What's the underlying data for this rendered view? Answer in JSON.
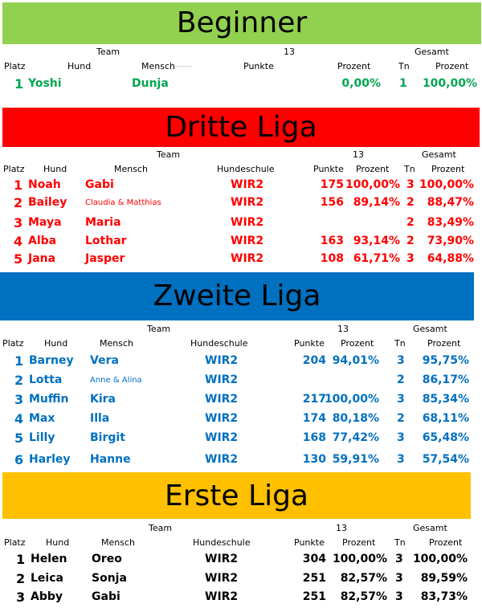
{
  "colors": {
    "beginner": "#92d050",
    "dritte": "#ff0000",
    "zweite": "#0070c0",
    "erste": "#ffc000"
  },
  "beginner": {
    "title": "Beginner",
    "team": "Team",
    "n": "13",
    "gesamt": "Gesamt",
    "cols": {
      "platz": "Platz",
      "hund": "Hund",
      "mensch": "Mensch",
      "dots": "..........",
      "punkte": "Punkte",
      "prozent": "Prozent",
      "tn": "Tn",
      "gprozent": "Prozent"
    },
    "rows": [
      {
        "platz": "1",
        "hund": "Yoshi",
        "mensch": "Dunja",
        "prozent": "0,00%",
        "tn": "1",
        "gprozent": "100,00%"
      }
    ]
  },
  "dritte": {
    "title": "Dritte Liga",
    "team": "Team",
    "n": "13",
    "gesamt": "Gesamt",
    "cols": {
      "platz": "Platz",
      "hund": "Hund",
      "mensch": "Mensch",
      "schule": "Hundeschule",
      "punkte": "Punkte",
      "prozent": "Prozent",
      "tn": "Tn",
      "gprozent": "Prozent"
    },
    "rows": [
      {
        "platz": "1",
        "hund": "Noah",
        "mensch": "Gabi",
        "schule": "WIR2",
        "punkte": "175",
        "prozent": "100,00%",
        "tn": "3",
        "gprozent": "100,00%"
      },
      {
        "platz": "2",
        "hund": "Bailey",
        "mensch": "Claudia & Matthias",
        "schule": "WIR2",
        "punkte": "156",
        "prozent": "89,14%",
        "tn": "2",
        "gprozent": "88,47%"
      },
      {
        "platz": "3",
        "hund": "Maya",
        "mensch": "Maria",
        "schule": "WIR2",
        "punkte": "",
        "prozent": "",
        "tn": "2",
        "gprozent": "83,49%"
      },
      {
        "platz": "4",
        "hund": "Alba",
        "mensch": "Lothar",
        "schule": "WIR2",
        "punkte": "163",
        "prozent": "93,14%",
        "tn": "2",
        "gprozent": "73,90%"
      },
      {
        "platz": "5",
        "hund": "Jana",
        "mensch": "Jasper",
        "schule": "WIR2",
        "punkte": "108",
        "prozent": "61,71%",
        "tn": "3",
        "gprozent": "64,88%"
      }
    ]
  },
  "zweite": {
    "title": "Zweite Liga",
    "team": "Team",
    "n": "13",
    "gesamt": "Gesamt",
    "cols": {
      "platz": "Platz",
      "hund": "Hund",
      "mensch": "Mensch",
      "schule": "Hundeschule",
      "punkte": "Punkte",
      "prozent": "Prozent",
      "tn": "Tn",
      "gprozent": "Prozent"
    },
    "rows": [
      {
        "platz": "1",
        "hund": "Barney",
        "mensch": "Vera",
        "schule": "WIR2",
        "punkte": "204",
        "prozent": "94,01%",
        "tn": "3",
        "gprozent": "95,75%"
      },
      {
        "platz": "2",
        "hund": "Lotta",
        "mensch": "Anne & Alina",
        "schule": "WIR2",
        "punkte": "",
        "prozent": "",
        "tn": "2",
        "gprozent": "86,17%"
      },
      {
        "platz": "3",
        "hund": "Muffin",
        "mensch": "Kira",
        "schule": "WIR2",
        "punkte": "217",
        "prozent": "100,00%",
        "tn": "3",
        "gprozent": "85,34%"
      },
      {
        "platz": "4",
        "hund": "Max",
        "mensch": "Illa",
        "schule": "WIR2",
        "punkte": "174",
        "prozent": "80,18%",
        "tn": "2",
        "gprozent": "68,11%"
      },
      {
        "platz": "5",
        "hund": "Lilly",
        "mensch": "Birgit",
        "schule": "WIR2",
        "punkte": "168",
        "prozent": "77,42%",
        "tn": "3",
        "gprozent": "65,48%"
      },
      {
        "platz": "6",
        "hund": "Harley",
        "mensch": "Hanne",
        "schule": "WIR2",
        "punkte": "130",
        "prozent": "59,91%",
        "tn": "3",
        "gprozent": "57,54%"
      }
    ]
  },
  "erste": {
    "title": "Erste Liga",
    "team": "Team",
    "n": "13",
    "gesamt": "Gesamt",
    "cols": {
      "platz": "Platz",
      "hund": "Hund",
      "mensch": "Mensch",
      "schule": "Hundeschule",
      "punkte": "Punkte",
      "prozent": "Prozent",
      "tn": "Tn",
      "gprozent": "Prozent"
    },
    "rows": [
      {
        "platz": "1",
        "hund": "Helen",
        "mensch": "Oreo",
        "schule": "WIR2",
        "punkte": "304",
        "prozent": "100,00%",
        "tn": "3",
        "gprozent": "100,00%"
      },
      {
        "platz": "2",
        "hund": "Leica",
        "mensch": "Sonja",
        "schule": "WIR2",
        "punkte": "251",
        "prozent": "82,57%",
        "tn": "3",
        "gprozent": "89,59%"
      },
      {
        "platz": "3",
        "hund": "Abby",
        "mensch": "Gabi",
        "schule": "WIR2",
        "punkte": "251",
        "prozent": "82,57%",
        "tn": "3",
        "gprozent": "83,73%"
      }
    ]
  }
}
